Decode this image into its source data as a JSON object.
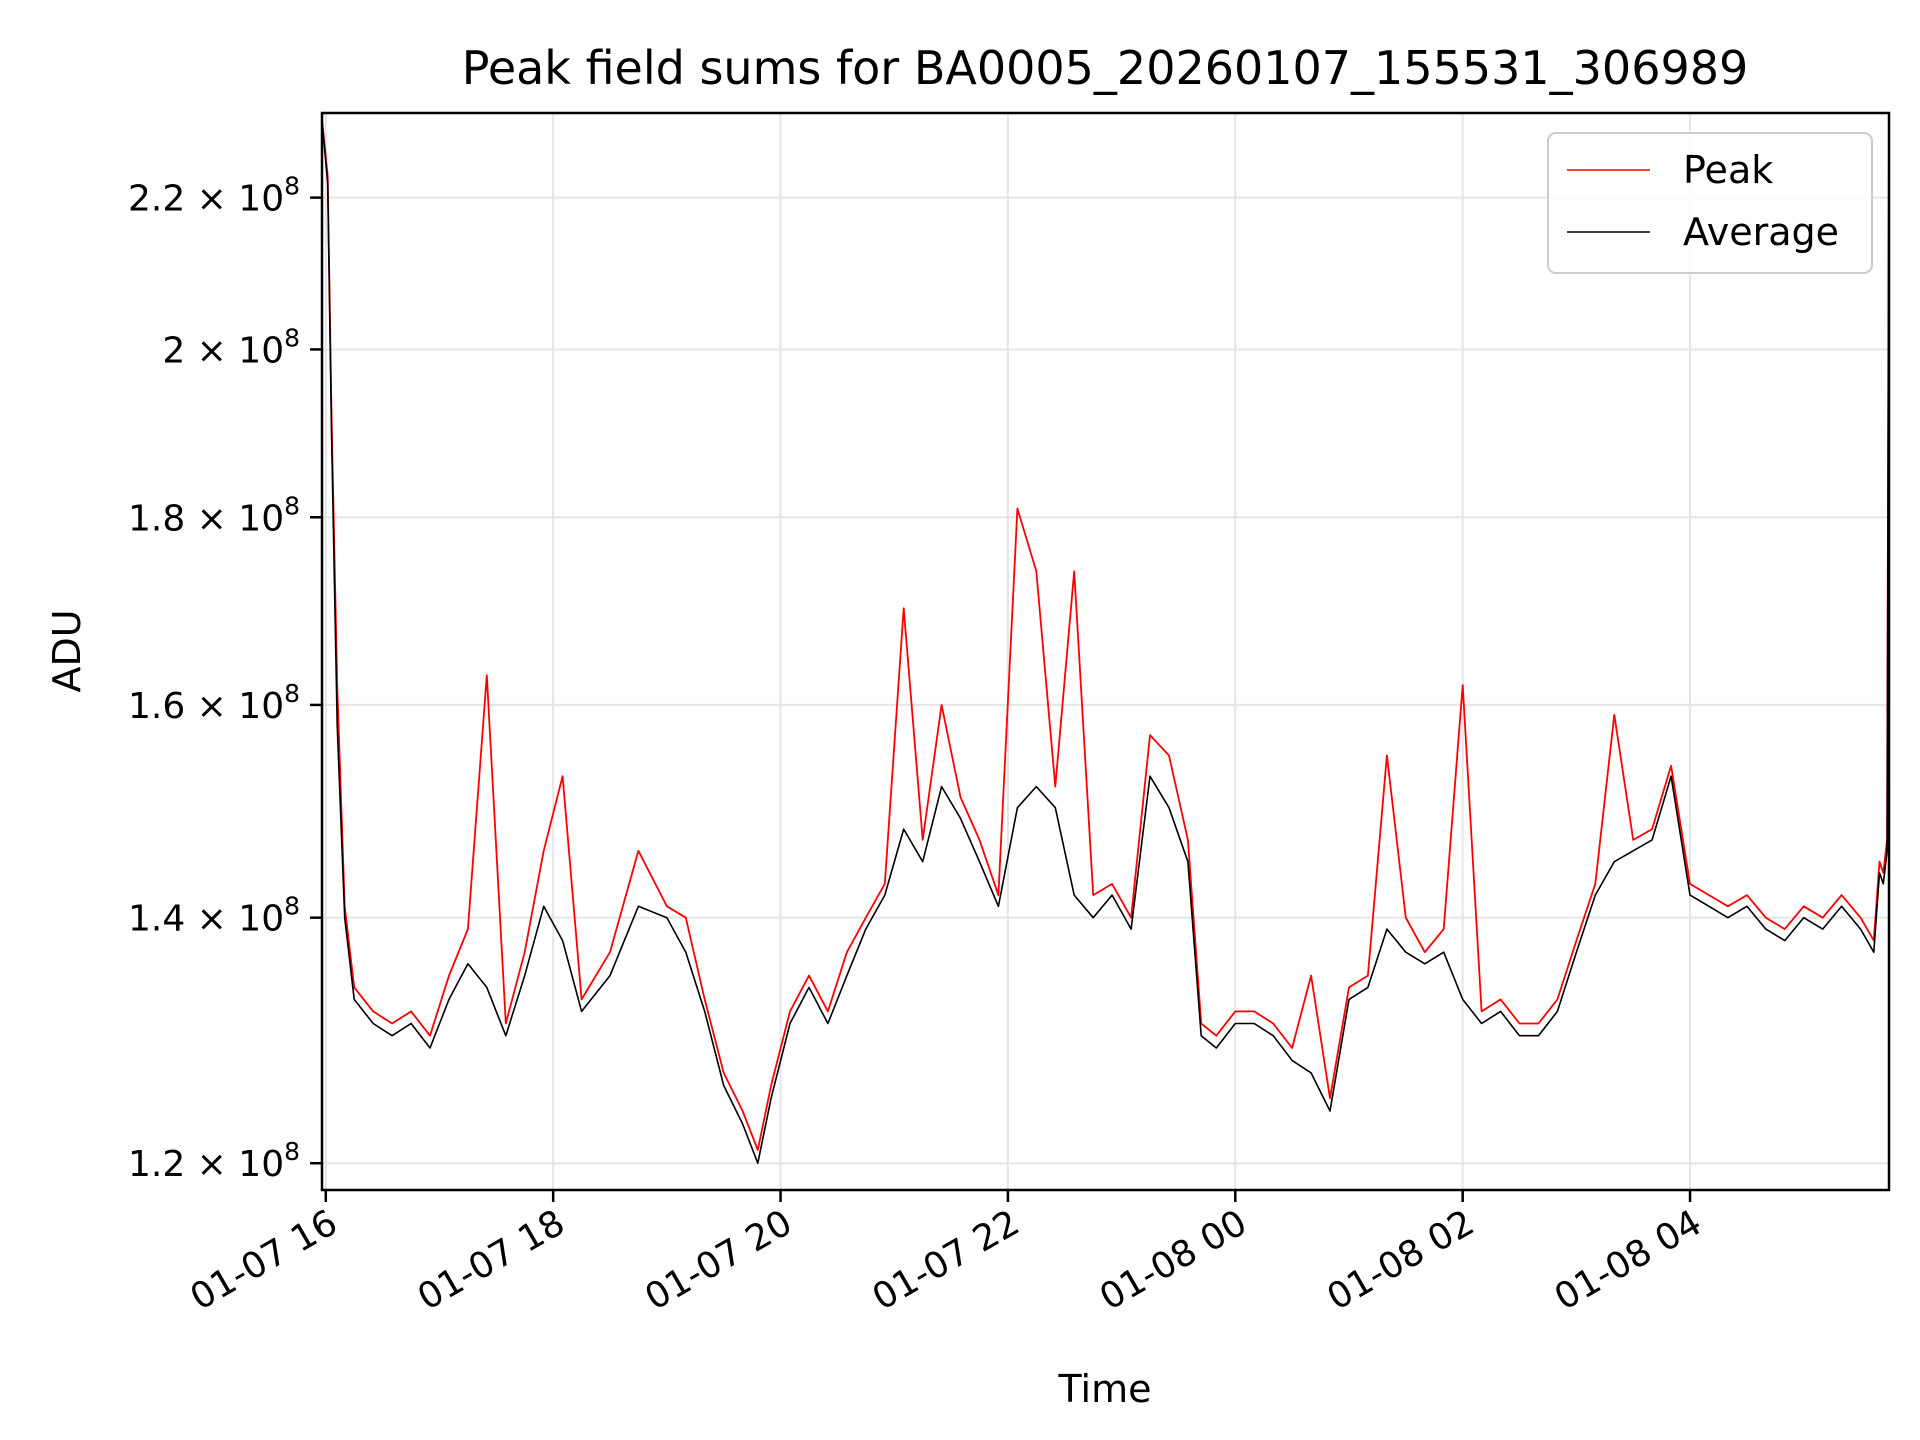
{
  "chart_data": {
    "type": "line",
    "title": "Peak field sums for BA0005_20260107_155531_306989",
    "xlabel": "Time",
    "ylabel": "ADU",
    "y_scale": "log",
    "ylim": [
      118000000,
      232000000
    ],
    "xlim": [
      "2026-01-07 15:58",
      "2026-01-08 05:45"
    ],
    "grid": true,
    "legend": {
      "location": "upper-right"
    },
    "x_ticks": [
      {
        "t": "2026-01-07 16:00",
        "label": "01-07 16"
      },
      {
        "t": "2026-01-07 18:00",
        "label": "01-07 18"
      },
      {
        "t": "2026-01-07 20:00",
        "label": "01-07 20"
      },
      {
        "t": "2026-01-07 22:00",
        "label": "01-07 22"
      },
      {
        "t": "2026-01-08 00:00",
        "label": "01-08 00"
      },
      {
        "t": "2026-01-08 02:00",
        "label": "01-08 02"
      },
      {
        "t": "2026-01-08 04:00",
        "label": "01-08 04"
      }
    ],
    "y_ticks": [
      {
        "v": 120000000,
        "mant": "1.2",
        "exp": "8"
      },
      {
        "v": 140000000,
        "mant": "1.4",
        "exp": "8"
      },
      {
        "v": 160000000,
        "mant": "1.6",
        "exp": "8"
      },
      {
        "v": 180000000,
        "mant": "1.8",
        "exp": "8"
      },
      {
        "v": 200000000,
        "mant": "2",
        "exp": "8"
      },
      {
        "v": 220000000,
        "mant": "2.2",
        "exp": "8"
      }
    ],
    "series": [
      {
        "name": "Average",
        "color": "#000000",
        "points": [
          [
            "2026-01-07 15:58",
            231000000
          ],
          [
            "2026-01-07 16:01",
            222000000
          ],
          [
            "2026-01-07 16:03",
            190000000
          ],
          [
            "2026-01-07 16:06",
            158000000
          ],
          [
            "2026-01-07 16:10",
            140000000
          ],
          [
            "2026-01-07 16:15",
            133000000
          ],
          [
            "2026-01-07 16:25",
            131000000
          ],
          [
            "2026-01-07 16:35",
            130000000
          ],
          [
            "2026-01-07 16:45",
            131000000
          ],
          [
            "2026-01-07 16:55",
            129000000
          ],
          [
            "2026-01-07 17:05",
            133000000
          ],
          [
            "2026-01-07 17:15",
            136000000
          ],
          [
            "2026-01-07 17:25",
            134000000
          ],
          [
            "2026-01-07 17:35",
            130000000
          ],
          [
            "2026-01-07 17:45",
            135000000
          ],
          [
            "2026-01-07 17:55",
            141000000
          ],
          [
            "2026-01-07 18:05",
            138000000
          ],
          [
            "2026-01-07 18:15",
            132000000
          ],
          [
            "2026-01-07 18:30",
            135000000
          ],
          [
            "2026-01-07 18:45",
            141000000
          ],
          [
            "2026-01-07 19:00",
            140000000
          ],
          [
            "2026-01-07 19:10",
            137000000
          ],
          [
            "2026-01-07 19:20",
            132000000
          ],
          [
            "2026-01-07 19:30",
            126000000
          ],
          [
            "2026-01-07 19:40",
            123000000
          ],
          [
            "2026-01-07 19:48",
            120000000
          ],
          [
            "2026-01-07 19:55",
            125000000
          ],
          [
            "2026-01-07 20:05",
            131000000
          ],
          [
            "2026-01-07 20:15",
            134000000
          ],
          [
            "2026-01-07 20:25",
            131000000
          ],
          [
            "2026-01-07 20:35",
            135000000
          ],
          [
            "2026-01-07 20:45",
            139000000
          ],
          [
            "2026-01-07 20:55",
            142000000
          ],
          [
            "2026-01-07 21:05",
            148000000
          ],
          [
            "2026-01-07 21:15",
            145000000
          ],
          [
            "2026-01-07 21:25",
            152000000
          ],
          [
            "2026-01-07 21:35",
            149000000
          ],
          [
            "2026-01-07 21:45",
            145000000
          ],
          [
            "2026-01-07 21:55",
            141000000
          ],
          [
            "2026-01-07 22:05",
            150000000
          ],
          [
            "2026-01-07 22:15",
            152000000
          ],
          [
            "2026-01-07 22:25",
            150000000
          ],
          [
            "2026-01-07 22:35",
            142000000
          ],
          [
            "2026-01-07 22:45",
            140000000
          ],
          [
            "2026-01-07 22:55",
            142000000
          ],
          [
            "2026-01-07 23:05",
            139000000
          ],
          [
            "2026-01-07 23:15",
            153000000
          ],
          [
            "2026-01-07 23:25",
            150000000
          ],
          [
            "2026-01-07 23:35",
            145000000
          ],
          [
            "2026-01-07 23:42",
            130000000
          ],
          [
            "2026-01-07 23:50",
            129000000
          ],
          [
            "2026-01-08 00:00",
            131000000
          ],
          [
            "2026-01-08 00:10",
            131000000
          ],
          [
            "2026-01-08 00:20",
            130000000
          ],
          [
            "2026-01-08 00:30",
            128000000
          ],
          [
            "2026-01-08 00:40",
            127000000
          ],
          [
            "2026-01-08 00:50",
            124000000
          ],
          [
            "2026-01-08 01:00",
            133000000
          ],
          [
            "2026-01-08 01:10",
            134000000
          ],
          [
            "2026-01-08 01:20",
            139000000
          ],
          [
            "2026-01-08 01:30",
            137000000
          ],
          [
            "2026-01-08 01:40",
            136000000
          ],
          [
            "2026-01-08 01:50",
            137000000
          ],
          [
            "2026-01-08 02:00",
            133000000
          ],
          [
            "2026-01-08 02:10",
            131000000
          ],
          [
            "2026-01-08 02:20",
            132000000
          ],
          [
            "2026-01-08 02:30",
            130000000
          ],
          [
            "2026-01-08 02:40",
            130000000
          ],
          [
            "2026-01-08 02:50",
            132000000
          ],
          [
            "2026-01-08 03:00",
            137000000
          ],
          [
            "2026-01-08 03:10",
            142000000
          ],
          [
            "2026-01-08 03:20",
            145000000
          ],
          [
            "2026-01-08 03:30",
            146000000
          ],
          [
            "2026-01-08 03:40",
            147000000
          ],
          [
            "2026-01-08 03:50",
            153000000
          ],
          [
            "2026-01-08 04:00",
            142000000
          ],
          [
            "2026-01-08 04:10",
            141000000
          ],
          [
            "2026-01-08 04:20",
            140000000
          ],
          [
            "2026-01-08 04:30",
            141000000
          ],
          [
            "2026-01-08 04:40",
            139000000
          ],
          [
            "2026-01-08 04:50",
            138000000
          ],
          [
            "2026-01-08 05:00",
            140000000
          ],
          [
            "2026-01-08 05:10",
            139000000
          ],
          [
            "2026-01-08 05:20",
            141000000
          ],
          [
            "2026-01-08 05:30",
            139000000
          ],
          [
            "2026-01-08 05:37",
            137000000
          ],
          [
            "2026-01-08 05:40",
            144000000
          ],
          [
            "2026-01-08 05:42",
            143000000
          ],
          [
            "2026-01-08 05:44",
            146000000
          ],
          [
            "2026-01-08 05:45",
            231000000
          ]
        ]
      },
      {
        "name": "Peak",
        "color": "#ff0000",
        "points": [
          [
            "2026-01-07 15:58",
            231000000
          ],
          [
            "2026-01-07 16:01",
            223000000
          ],
          [
            "2026-01-07 16:03",
            192000000
          ],
          [
            "2026-01-07 16:06",
            162000000
          ],
          [
            "2026-01-07 16:10",
            141000000
          ],
          [
            "2026-01-07 16:15",
            134000000
          ],
          [
            "2026-01-07 16:25",
            132000000
          ],
          [
            "2026-01-07 16:35",
            131000000
          ],
          [
            "2026-01-07 16:45",
            132000000
          ],
          [
            "2026-01-07 16:55",
            130000000
          ],
          [
            "2026-01-07 17:05",
            135000000
          ],
          [
            "2026-01-07 17:15",
            139000000
          ],
          [
            "2026-01-07 17:25",
            163000000
          ],
          [
            "2026-01-07 17:35",
            131000000
          ],
          [
            "2026-01-07 17:45",
            137000000
          ],
          [
            "2026-01-07 17:55",
            146000000
          ],
          [
            "2026-01-07 18:05",
            153000000
          ],
          [
            "2026-01-07 18:15",
            133000000
          ],
          [
            "2026-01-07 18:30",
            137000000
          ],
          [
            "2026-01-07 18:45",
            146000000
          ],
          [
            "2026-01-07 19:00",
            141000000
          ],
          [
            "2026-01-07 19:10",
            140000000
          ],
          [
            "2026-01-07 19:20",
            133000000
          ],
          [
            "2026-01-07 19:30",
            127000000
          ],
          [
            "2026-01-07 19:40",
            124000000
          ],
          [
            "2026-01-07 19:48",
            121000000
          ],
          [
            "2026-01-07 19:55",
            126000000
          ],
          [
            "2026-01-07 20:05",
            132000000
          ],
          [
            "2026-01-07 20:15",
            135000000
          ],
          [
            "2026-01-07 20:25",
            132000000
          ],
          [
            "2026-01-07 20:35",
            137000000
          ],
          [
            "2026-01-07 20:45",
            140000000
          ],
          [
            "2026-01-07 20:55",
            143000000
          ],
          [
            "2026-01-07 21:05",
            170000000
          ],
          [
            "2026-01-07 21:15",
            147000000
          ],
          [
            "2026-01-07 21:25",
            160000000
          ],
          [
            "2026-01-07 21:35",
            151000000
          ],
          [
            "2026-01-07 21:45",
            147000000
          ],
          [
            "2026-01-07 21:55",
            142000000
          ],
          [
            "2026-01-07 22:05",
            181000000
          ],
          [
            "2026-01-07 22:15",
            174000000
          ],
          [
            "2026-01-07 22:25",
            152000000
          ],
          [
            "2026-01-07 22:35",
            174000000
          ],
          [
            "2026-01-07 22:45",
            142000000
          ],
          [
            "2026-01-07 22:55",
            143000000
          ],
          [
            "2026-01-07 23:05",
            140000000
          ],
          [
            "2026-01-07 23:15",
            157000000
          ],
          [
            "2026-01-07 23:25",
            155000000
          ],
          [
            "2026-01-07 23:35",
            147000000
          ],
          [
            "2026-01-07 23:42",
            131000000
          ],
          [
            "2026-01-07 23:50",
            130000000
          ],
          [
            "2026-01-08 00:00",
            132000000
          ],
          [
            "2026-01-08 00:10",
            132000000
          ],
          [
            "2026-01-08 00:20",
            131000000
          ],
          [
            "2026-01-08 00:30",
            129000000
          ],
          [
            "2026-01-08 00:40",
            135000000
          ],
          [
            "2026-01-08 00:50",
            125000000
          ],
          [
            "2026-01-08 01:00",
            134000000
          ],
          [
            "2026-01-08 01:10",
            135000000
          ],
          [
            "2026-01-08 01:20",
            155000000
          ],
          [
            "2026-01-08 01:30",
            140000000
          ],
          [
            "2026-01-08 01:40",
            137000000
          ],
          [
            "2026-01-08 01:50",
            139000000
          ],
          [
            "2026-01-08 02:00",
            162000000
          ],
          [
            "2026-01-08 02:10",
            132000000
          ],
          [
            "2026-01-08 02:20",
            133000000
          ],
          [
            "2026-01-08 02:30",
            131000000
          ],
          [
            "2026-01-08 02:40",
            131000000
          ],
          [
            "2026-01-08 02:50",
            133000000
          ],
          [
            "2026-01-08 03:00",
            138000000
          ],
          [
            "2026-01-08 03:10",
            143000000
          ],
          [
            "2026-01-08 03:20",
            159000000
          ],
          [
            "2026-01-08 03:30",
            147000000
          ],
          [
            "2026-01-08 03:40",
            148000000
          ],
          [
            "2026-01-08 03:50",
            154000000
          ],
          [
            "2026-01-08 04:00",
            143000000
          ],
          [
            "2026-01-08 04:10",
            142000000
          ],
          [
            "2026-01-08 04:20",
            141000000
          ],
          [
            "2026-01-08 04:30",
            142000000
          ],
          [
            "2026-01-08 04:40",
            140000000
          ],
          [
            "2026-01-08 04:50",
            139000000
          ],
          [
            "2026-01-08 05:00",
            141000000
          ],
          [
            "2026-01-08 05:10",
            140000000
          ],
          [
            "2026-01-08 05:20",
            142000000
          ],
          [
            "2026-01-08 05:30",
            140000000
          ],
          [
            "2026-01-08 05:37",
            138000000
          ],
          [
            "2026-01-08 05:40",
            145000000
          ],
          [
            "2026-01-08 05:42",
            144000000
          ],
          [
            "2026-01-08 05:44",
            147000000
          ],
          [
            "2026-01-08 05:45",
            232000000
          ]
        ]
      }
    ]
  }
}
